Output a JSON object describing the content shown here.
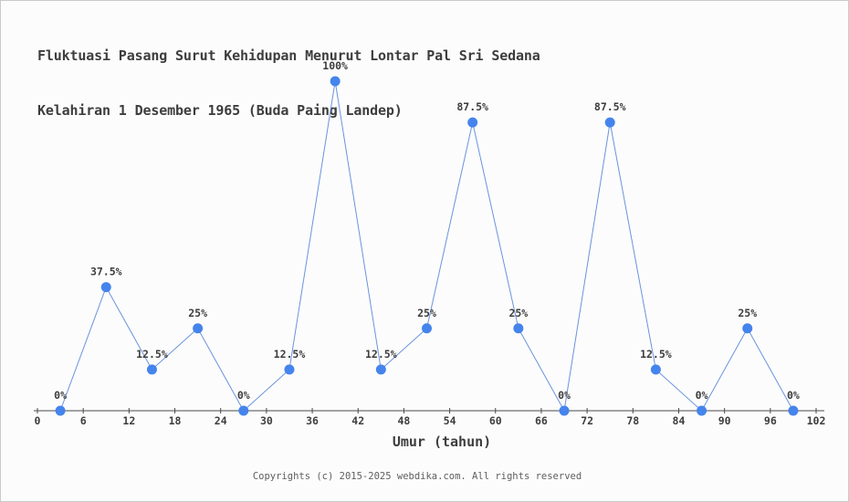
{
  "header": {
    "title_line1": "Fluktuasi Pasang Surut Kehidupan Menurut Lontar Pal Sri Sedana",
    "title_line2": "Kelahiran 1 Desember 1965 (Buda Paing Landep)"
  },
  "footer": {
    "copyright": "Copyrights (c) 2015-2025 webdika.com. All rights reserved"
  },
  "chart_data": {
    "type": "line",
    "title": "Fluktuasi Pasang Surut Kehidupan Menurut Lontar Pal Sri Sedana Kelahiran 1 Desember 1965 (Buda Paing Landep)",
    "xlabel": "Umur (tahun)",
    "ylabel": "",
    "x": [
      3,
      9,
      15,
      21,
      27,
      33,
      39,
      45,
      51,
      57,
      63,
      69,
      75,
      81,
      87,
      93,
      99
    ],
    "values": [
      0,
      37.5,
      12.5,
      25,
      0,
      12.5,
      100,
      12.5,
      25,
      87.5,
      25,
      0,
      87.5,
      12.5,
      0,
      25,
      0
    ],
    "point_labels": [
      "0%",
      "37.5%",
      "12.5%",
      "25%",
      "0%",
      "12.5%",
      "100%",
      "12.5%",
      "25%",
      "87.5%",
      "25%",
      "0%",
      "87.5%",
      "12.5%",
      "0%",
      "25%",
      "0%"
    ],
    "x_ticks": [
      0,
      6,
      12,
      18,
      24,
      30,
      36,
      42,
      48,
      54,
      60,
      66,
      72,
      78,
      84,
      90,
      96,
      102
    ],
    "xlim": [
      0,
      102
    ],
    "ylim": [
      0,
      100
    ],
    "grid": false,
    "legend": false,
    "colors": {
      "marker": "#4484ec",
      "line": "#6a93de",
      "axis": "#4a4a4a",
      "label": "#3d3d3d",
      "background": "#fcfcfc"
    }
  }
}
